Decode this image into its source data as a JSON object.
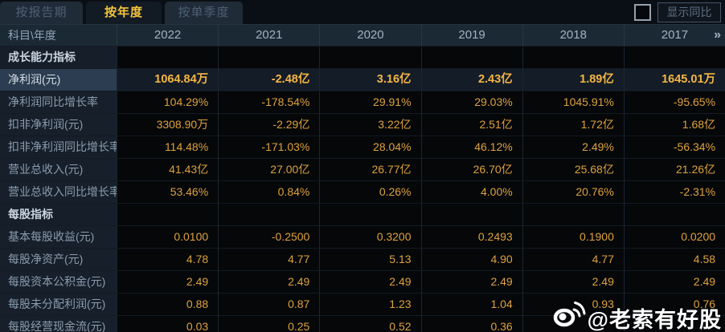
{
  "tabs": [
    {
      "label": "按报告期",
      "active": false
    },
    {
      "label": "按年度",
      "active": true
    },
    {
      "label": "按单季度",
      "active": false
    }
  ],
  "controls": {
    "show_yoy_label": "显示同比",
    "checkbox_checked": false
  },
  "table": {
    "corner_label": "科目\\年度",
    "years": [
      "2022",
      "2021",
      "2020",
      "2019",
      "2018",
      "2017"
    ],
    "more_icon": "»",
    "rows": [
      {
        "type": "section",
        "label": "成长能力指标",
        "values": [
          "",
          "",
          "",
          "",
          "",
          ""
        ]
      },
      {
        "type": "data",
        "highlight": true,
        "label": "净利润(元)",
        "values": [
          "1064.84万",
          "-2.48亿",
          "3.16亿",
          "2.43亿",
          "1.89亿",
          "1645.01万"
        ]
      },
      {
        "type": "data",
        "highlight": false,
        "label": "净利润同比增长率",
        "values": [
          "104.29%",
          "-178.54%",
          "29.91%",
          "29.03%",
          "1045.91%",
          "-95.65%"
        ]
      },
      {
        "type": "data",
        "highlight": false,
        "label": "扣非净利润(元)",
        "values": [
          "3308.90万",
          "-2.29亿",
          "3.22亿",
          "2.51亿",
          "1.72亿",
          "1.68亿"
        ]
      },
      {
        "type": "data",
        "highlight": false,
        "label": "扣非净利润同比增长率",
        "values": [
          "114.48%",
          "-171.03%",
          "28.04%",
          "46.12%",
          "2.49%",
          "-56.34%"
        ]
      },
      {
        "type": "data",
        "highlight": false,
        "label": "营业总收入(元)",
        "values": [
          "41.43亿",
          "27.00亿",
          "26.77亿",
          "26.70亿",
          "25.68亿",
          "21.26亿"
        ]
      },
      {
        "type": "data",
        "highlight": false,
        "label": "营业总收入同比增长率",
        "values": [
          "53.46%",
          "0.84%",
          "0.26%",
          "4.00%",
          "20.76%",
          "-2.31%"
        ]
      },
      {
        "type": "section",
        "label": "每股指标",
        "values": [
          "",
          "",
          "",
          "",
          "",
          ""
        ]
      },
      {
        "type": "data",
        "highlight": false,
        "label": "基本每股收益(元)",
        "values": [
          "0.0100",
          "-0.2500",
          "0.3200",
          "0.2493",
          "0.1900",
          "0.0200"
        ]
      },
      {
        "type": "data",
        "highlight": false,
        "label": "每股净资产(元)",
        "values": [
          "4.78",
          "4.77",
          "5.13",
          "4.90",
          "4.77",
          "4.58"
        ]
      },
      {
        "type": "data",
        "highlight": false,
        "label": "每股资本公积金(元)",
        "values": [
          "2.49",
          "2.49",
          "2.49",
          "2.49",
          "2.49",
          "2.49"
        ]
      },
      {
        "type": "data",
        "highlight": false,
        "label": "每股未分配利润(元)",
        "values": [
          "0.88",
          "0.87",
          "1.23",
          "1.04",
          "0.93",
          "0.76"
        ]
      },
      {
        "type": "data",
        "highlight": false,
        "label": "每股经营现金流(元)",
        "values": [
          "0.03",
          "0.25",
          "0.52",
          "0.36",
          "",
          ""
        ]
      }
    ]
  },
  "watermark": {
    "handle": "@老索有好股",
    "icon": "weibo-icon"
  },
  "colors": {
    "value_gold": "#dea23d",
    "highlight_gold": "#f4b644",
    "tab_active_text": "#f2c33d",
    "header_bg": "#1b2935",
    "label_cell_bg": "#161f2a",
    "value_cell_bg": "#050709",
    "highlight_label_bg": "#2d3d51",
    "watermark_color": "#ffffff"
  }
}
